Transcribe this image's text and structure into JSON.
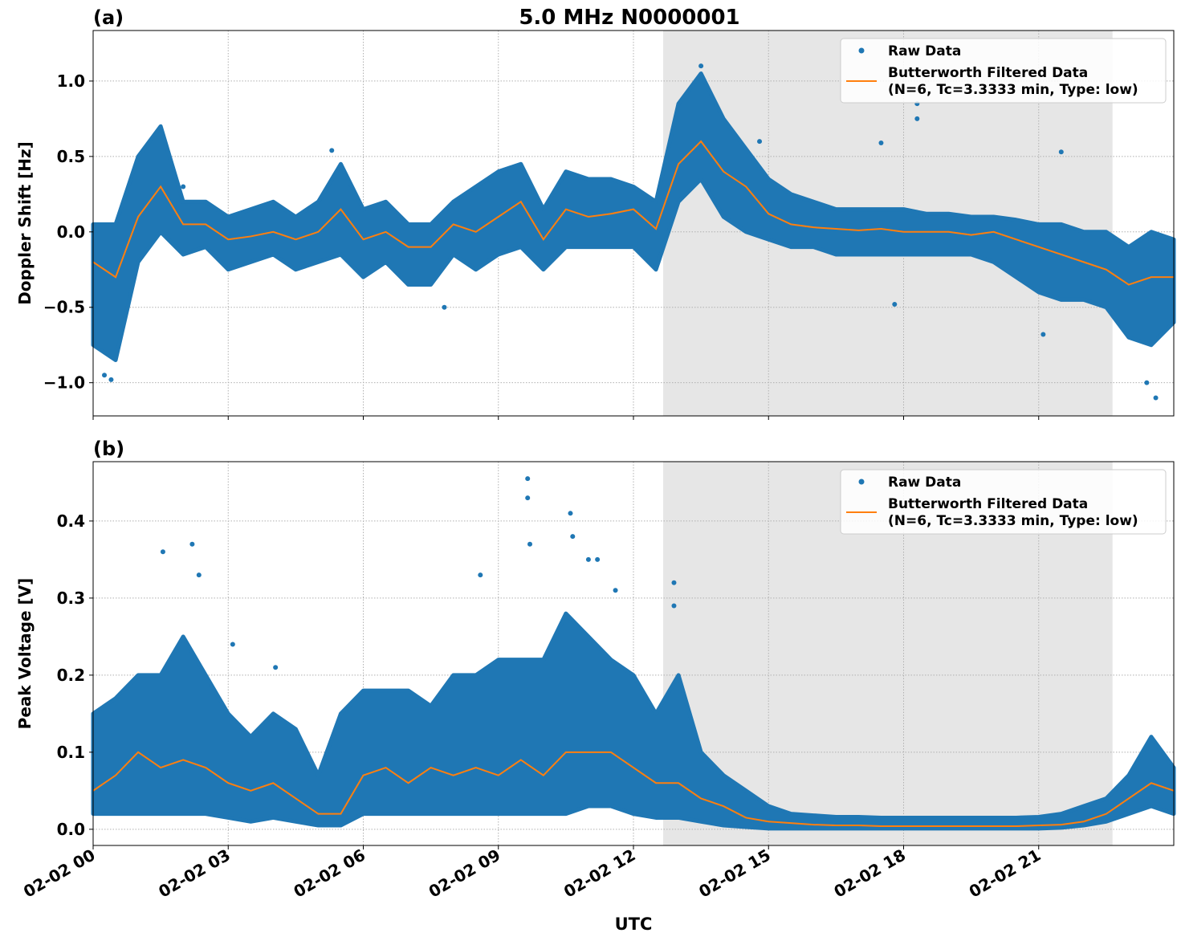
{
  "title": "5.0 MHz N0000001",
  "xlabel": "UTC",
  "xticks": [
    "02-02 00",
    "02-02 03",
    "02-02 06",
    "02-02 09",
    "02-02 12",
    "02-02 15",
    "02-02 18",
    "02-02 21"
  ],
  "xtick_hours": [
    0,
    3,
    6,
    9,
    12,
    15,
    18,
    21
  ],
  "xlim_hours": [
    0,
    24
  ],
  "shaded_span_hours": [
    12.66,
    22.64
  ],
  "colors": {
    "raw": "#1f77b4",
    "filtered": "#ff7f0e",
    "shade": "#e6e6e6",
    "grid": "#b0b0b0"
  },
  "legend": {
    "raw": "Raw Data",
    "filtered_line1": "Butterworth Filtered Data",
    "filtered_line2": "(N=6, Tc=3.3333 min, Type: low)",
    "placement": "upper right"
  },
  "chart_data": [
    {
      "type": "scatter+line",
      "panel_label": "(a)",
      "ylabel": "Doppler Shift [Hz]",
      "ylim": [
        -1.22,
        1.335
      ],
      "yticks": [
        1.0,
        0.5,
        0.0,
        -0.5,
        -1.0
      ],
      "ytick_labels": [
        "1.0",
        "0.5",
        "0.0",
        "−0.5",
        "−1.0"
      ],
      "grid": true,
      "x_hours": [
        0,
        0.5,
        1,
        1.5,
        2,
        2.5,
        3,
        3.5,
        4,
        4.5,
        5,
        5.5,
        6,
        6.5,
        7,
        7.5,
        8,
        8.5,
        9,
        9.5,
        10,
        10.5,
        11,
        11.5,
        12,
        12.5,
        13,
        13.5,
        14,
        14.5,
        15,
        15.5,
        16,
        16.5,
        17,
        17.5,
        18,
        18.5,
        19,
        19.5,
        20,
        20.5,
        21,
        21.5,
        22,
        22.5,
        23,
        23.5,
        24
      ],
      "filtered": [
        -0.2,
        -0.3,
        0.1,
        0.3,
        0.05,
        0.05,
        -0.05,
        -0.03,
        0.0,
        -0.05,
        0.0,
        0.15,
        -0.05,
        0.0,
        -0.1,
        -0.1,
        0.05,
        0.0,
        0.1,
        0.2,
        -0.05,
        0.15,
        0.1,
        0.12,
        0.15,
        0.02,
        0.45,
        0.6,
        0.4,
        0.3,
        0.12,
        0.05,
        0.03,
        0.02,
        0.01,
        0.02,
        0.0,
        0.0,
        0.0,
        -0.02,
        0.0,
        -0.05,
        -0.1,
        -0.15,
        -0.2,
        -0.25,
        -0.35,
        -0.3,
        -0.3
      ],
      "raw_upper": [
        0.05,
        0.05,
        0.5,
        0.7,
        0.2,
        0.2,
        0.1,
        0.15,
        0.2,
        0.1,
        0.2,
        0.45,
        0.15,
        0.2,
        0.05,
        0.05,
        0.2,
        0.3,
        0.4,
        0.45,
        0.15,
        0.4,
        0.35,
        0.35,
        0.3,
        0.2,
        0.85,
        1.05,
        0.75,
        0.55,
        0.35,
        0.25,
        0.2,
        0.15,
        0.15,
        0.15,
        0.15,
        0.12,
        0.12,
        0.1,
        0.1,
        0.08,
        0.05,
        0.05,
        0.0,
        0.0,
        -0.1,
        0.0,
        -0.05
      ],
      "raw_lower": [
        -0.75,
        -0.85,
        -0.2,
        0.0,
        -0.15,
        -0.1,
        -0.25,
        -0.2,
        -0.15,
        -0.25,
        -0.2,
        -0.15,
        -0.3,
        -0.2,
        -0.35,
        -0.35,
        -0.15,
        -0.25,
        -0.15,
        -0.1,
        -0.25,
        -0.1,
        -0.1,
        -0.1,
        -0.1,
        -0.25,
        0.2,
        0.35,
        0.1,
        0.0,
        -0.05,
        -0.1,
        -0.1,
        -0.15,
        -0.15,
        -0.15,
        -0.15,
        -0.15,
        -0.15,
        -0.15,
        -0.2,
        -0.3,
        -0.4,
        -0.45,
        -0.45,
        -0.5,
        -0.7,
        -0.75,
        -0.6
      ],
      "outliers": [
        [
          0.25,
          -0.95
        ],
        [
          0.4,
          -0.98
        ],
        [
          2.0,
          0.3
        ],
        [
          5.3,
          0.54
        ],
        [
          7.8,
          -0.5
        ],
        [
          13.5,
          1.1
        ],
        [
          14.8,
          0.6
        ],
        [
          17.5,
          0.59
        ],
        [
          18.3,
          0.85
        ],
        [
          18.3,
          0.75
        ],
        [
          17.8,
          -0.48
        ],
        [
          21.1,
          -0.68
        ],
        [
          23.4,
          -1.0
        ],
        [
          23.6,
          -1.1
        ],
        [
          21.5,
          0.53
        ]
      ]
    },
    {
      "type": "scatter+line",
      "panel_label": "(b)",
      "ylabel": "Peak Voltage [V]",
      "ylim": [
        -0.021,
        0.477
      ],
      "yticks": [
        0.0,
        0.1,
        0.2,
        0.3,
        0.4
      ],
      "ytick_labels": [
        "0.0",
        "0.1",
        "0.2",
        "0.3",
        "0.4"
      ],
      "grid": true,
      "x_hours": [
        0,
        0.5,
        1,
        1.5,
        2,
        2.5,
        3,
        3.5,
        4,
        4.5,
        5,
        5.5,
        6,
        6.5,
        7,
        7.5,
        8,
        8.5,
        9,
        9.5,
        10,
        10.5,
        11,
        11.5,
        12,
        12.5,
        13,
        13.5,
        14,
        14.5,
        15,
        15.5,
        16,
        16.5,
        17,
        17.5,
        18,
        18.5,
        19,
        19.5,
        20,
        20.5,
        21,
        21.5,
        22,
        22.5,
        23,
        23.5,
        24
      ],
      "filtered": [
        0.05,
        0.07,
        0.1,
        0.08,
        0.09,
        0.08,
        0.06,
        0.05,
        0.06,
        0.04,
        0.02,
        0.02,
        0.07,
        0.08,
        0.06,
        0.08,
        0.07,
        0.08,
        0.07,
        0.09,
        0.07,
        0.1,
        0.1,
        0.1,
        0.08,
        0.06,
        0.06,
        0.04,
        0.03,
        0.015,
        0.01,
        0.008,
        0.006,
        0.005,
        0.005,
        0.004,
        0.004,
        0.004,
        0.004,
        0.004,
        0.004,
        0.004,
        0.005,
        0.006,
        0.01,
        0.02,
        0.04,
        0.06,
        0.05
      ],
      "raw_upper": [
        0.15,
        0.17,
        0.2,
        0.2,
        0.25,
        0.2,
        0.15,
        0.12,
        0.15,
        0.13,
        0.07,
        0.15,
        0.18,
        0.18,
        0.18,
        0.16,
        0.2,
        0.2,
        0.22,
        0.22,
        0.22,
        0.28,
        0.25,
        0.22,
        0.2,
        0.15,
        0.2,
        0.1,
        0.07,
        0.05,
        0.03,
        0.02,
        0.018,
        0.016,
        0.016,
        0.015,
        0.015,
        0.015,
        0.015,
        0.015,
        0.015,
        0.015,
        0.016,
        0.02,
        0.03,
        0.04,
        0.07,
        0.12,
        0.08
      ],
      "raw_lower": [
        0.02,
        0.02,
        0.02,
        0.02,
        0.02,
        0.02,
        0.015,
        0.01,
        0.015,
        0.01,
        0.005,
        0.005,
        0.02,
        0.02,
        0.02,
        0.02,
        0.02,
        0.02,
        0.02,
        0.02,
        0.02,
        0.02,
        0.03,
        0.03,
        0.02,
        0.015,
        0.015,
        0.01,
        0.005,
        0.003,
        0.001,
        0.001,
        0.001,
        0.001,
        0.001,
        0.001,
        0.001,
        0.001,
        0.001,
        0.001,
        0.001,
        0.001,
        0.001,
        0.002,
        0.005,
        0.01,
        0.02,
        0.03,
        0.02
      ],
      "outliers": [
        [
          1.55,
          0.36
        ],
        [
          2.2,
          0.37
        ],
        [
          2.35,
          0.33
        ],
        [
          3.1,
          0.24
        ],
        [
          4.05,
          0.21
        ],
        [
          9.65,
          0.455
        ],
        [
          9.65,
          0.43
        ],
        [
          9.7,
          0.37
        ],
        [
          10.6,
          0.41
        ],
        [
          10.65,
          0.38
        ],
        [
          11.0,
          0.35
        ],
        [
          11.2,
          0.35
        ],
        [
          12.9,
          0.32
        ],
        [
          12.9,
          0.29
        ],
        [
          11.6,
          0.31
        ],
        [
          8.6,
          0.33
        ]
      ]
    }
  ]
}
